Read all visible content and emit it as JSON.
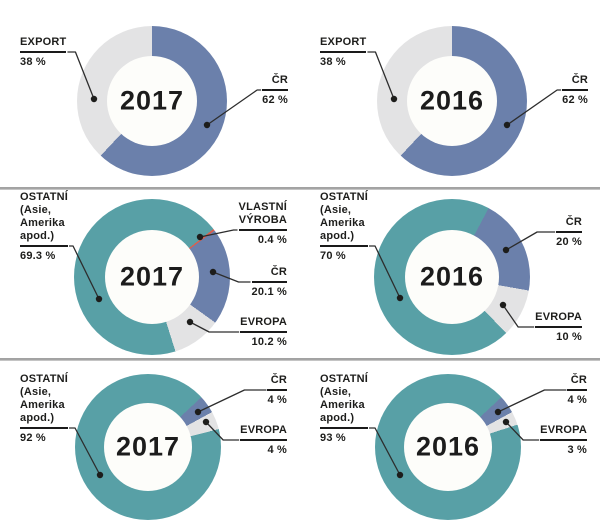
{
  "colors": {
    "blue": "#6b80ab",
    "teal": "#58a0a6",
    "gray": "#e3e3e4",
    "red": "#dc5f4e",
    "text": "#1d1d1b",
    "leader_line": "#2d2d2d",
    "divider": "#a2a2a2",
    "hole": "#fdfdfa"
  },
  "chart_data": [
    {
      "type": "pie",
      "variant": "donut",
      "position": "row-1-left",
      "year": "2017",
      "rotation_deg": 0,
      "segments": [
        {
          "label": "ČR",
          "value": 62,
          "pct_label": "62 %",
          "color": "blue"
        },
        {
          "label": "EXPORT",
          "value": 38,
          "pct_label": "38 %",
          "color": "gray"
        }
      ]
    },
    {
      "type": "pie",
      "variant": "donut",
      "position": "row-1-right",
      "year": "2016",
      "rotation_deg": 0,
      "segments": [
        {
          "label": "ČR",
          "value": 62,
          "pct_label": "62 %",
          "color": "blue"
        },
        {
          "label": "EXPORT",
          "value": 38,
          "pct_label": "38 %",
          "color": "gray"
        }
      ]
    },
    {
      "type": "pie",
      "variant": "donut",
      "position": "row-2-left",
      "year": "2017",
      "rotation_deg": 52,
      "segments": [
        {
          "label": "VLASTNÍ\nVÝROBA",
          "value": 0.4,
          "pct_label": "0.4 %",
          "color": "red"
        },
        {
          "label": "ČR",
          "value": 20.1,
          "pct_label": "20.1 %",
          "color": "blue"
        },
        {
          "label": "EVROPA",
          "value": 10.2,
          "pct_label": "10.2 %",
          "color": "gray"
        },
        {
          "label": "OSTATNÍ\n(Asie,\nAmerika\napod.)",
          "value": 69.3,
          "pct_label": "69.3 %",
          "color": "teal"
        }
      ]
    },
    {
      "type": "pie",
      "variant": "donut",
      "position": "row-2-right",
      "year": "2016",
      "rotation_deg": 28,
      "segments": [
        {
          "label": "ČR",
          "value": 20,
          "pct_label": "20 %",
          "color": "blue"
        },
        {
          "label": "EVROPA",
          "value": 10,
          "pct_label": "10 %",
          "color": "gray"
        },
        {
          "label": "OSTATNÍ\n(Asie,\nAmerika\napod.)",
          "value": 70,
          "pct_label": "70 %",
          "color": "teal"
        }
      ]
    },
    {
      "type": "pie",
      "variant": "donut",
      "position": "row-3-left",
      "year": "2017",
      "rotation_deg": 47,
      "segments": [
        {
          "label": "ČR",
          "value": 4,
          "pct_label": "4 %",
          "color": "blue"
        },
        {
          "label": "EVROPA",
          "value": 4,
          "pct_label": "4 %",
          "color": "gray"
        },
        {
          "label": "OSTATNÍ\n(Asie,\nAmerika\napod.)",
          "value": 92,
          "pct_label": "92 %",
          "color": "teal"
        }
      ]
    },
    {
      "type": "pie",
      "variant": "donut",
      "position": "row-3-right",
      "year": "2016",
      "rotation_deg": 47,
      "segments": [
        {
          "label": "ČR",
          "value": 4,
          "pct_label": "4 %",
          "color": "blue"
        },
        {
          "label": "EVROPA",
          "value": 3,
          "pct_label": "3 %",
          "color": "gray"
        },
        {
          "label": "OSTATNÍ\n(Asie,\nAmerika\napod.)",
          "value": 93,
          "pct_label": "93 %",
          "color": "teal"
        }
      ]
    }
  ]
}
